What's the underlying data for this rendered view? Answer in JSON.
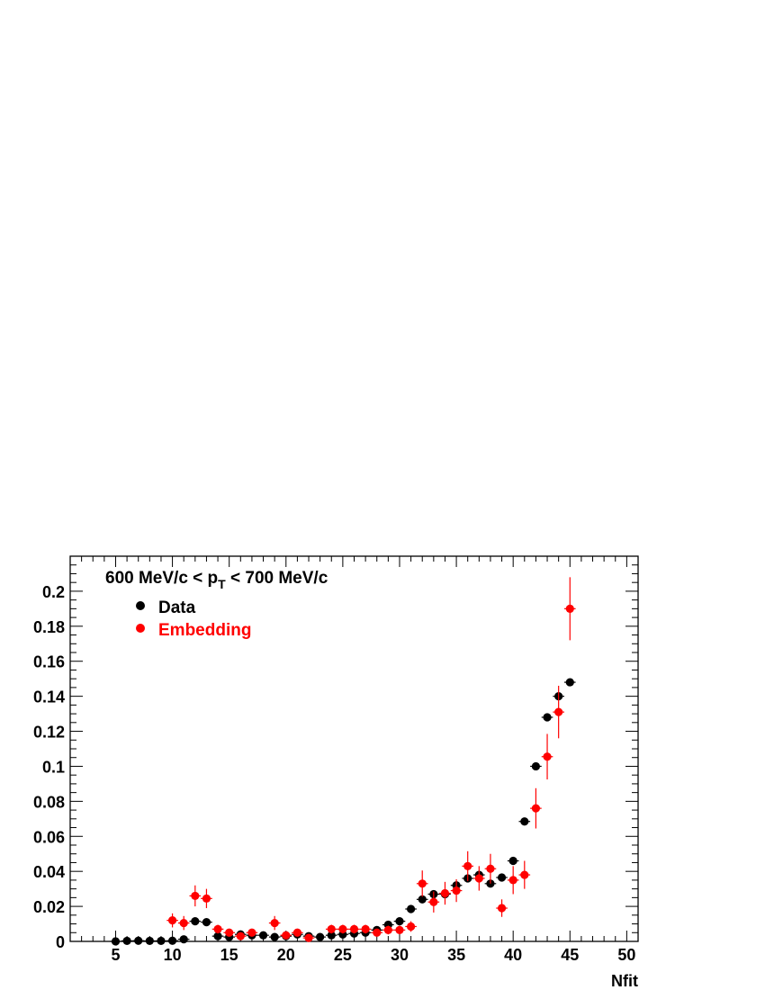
{
  "chart_data": {
    "type": "scatter",
    "title": "600 MeV/c < p",
    "title_subscript": "T",
    "title_suffix": " < 700 MeV/c",
    "xlabel": "Nfit",
    "ylabel": "",
    "xlim": [
      1,
      51
    ],
    "ylim": [
      0,
      0.22
    ],
    "x_ticks": [
      5,
      10,
      15,
      20,
      25,
      30,
      35,
      40,
      45,
      50
    ],
    "y_ticks": [
      0,
      0.02,
      0.04,
      0.06,
      0.08,
      0.1,
      0.12,
      0.14,
      0.16,
      0.18,
      0.2
    ],
    "x_tick_labels": [
      "5",
      "10",
      "15",
      "20",
      "25",
      "30",
      "35",
      "40",
      "45",
      "50"
    ],
    "y_tick_labels": [
      "0",
      "0.02",
      "0.04",
      "0.06",
      "0.08",
      "0.1",
      "0.12",
      "0.14",
      "0.16",
      "0.18",
      "0.2"
    ],
    "grid": false,
    "legend_position": "top-left",
    "series": [
      {
        "name": "Data",
        "color": "#000000",
        "x": [
          5,
          6,
          7,
          8,
          9,
          10,
          11,
          12,
          13,
          14,
          15,
          16,
          17,
          18,
          19,
          20,
          21,
          22,
          23,
          24,
          25,
          26,
          27,
          28,
          29,
          30,
          31,
          32,
          33,
          34,
          35,
          36,
          37,
          38,
          39,
          40,
          41,
          42,
          43,
          44,
          45
        ],
        "y": [
          0.0,
          0.0003,
          0.0004,
          0.0003,
          0.0003,
          0.0004,
          0.0012,
          0.0115,
          0.011,
          0.003,
          0.0025,
          0.004,
          0.0035,
          0.0035,
          0.0025,
          0.003,
          0.004,
          0.003,
          0.0025,
          0.0035,
          0.004,
          0.0045,
          0.005,
          0.0065,
          0.0095,
          0.0115,
          0.0185,
          0.024,
          0.027,
          0.027,
          0.032,
          0.036,
          0.038,
          0.033,
          0.0365,
          0.046,
          0.0685,
          0.1,
          0.128,
          0.14,
          0.148
        ],
        "yerr": [
          0.0002,
          0.0002,
          0.0002,
          0.0002,
          0.0002,
          0.0002,
          0.0004,
          0.0008,
          0.0008,
          0.0004,
          0.0004,
          0.0004,
          0.0004,
          0.0004,
          0.0004,
          0.0004,
          0.0004,
          0.0004,
          0.0004,
          0.0004,
          0.0004,
          0.0004,
          0.0004,
          0.0005,
          0.0006,
          0.0007,
          0.0008,
          0.0009,
          0.001,
          0.001,
          0.001,
          0.001,
          0.0012,
          0.0012,
          0.0012,
          0.0013,
          0.0015,
          0.0016,
          0.0018,
          0.002,
          0.0015
        ]
      },
      {
        "name": "Embedding",
        "color": "#ff0000",
        "x": [
          10,
          11,
          12,
          13,
          14,
          15,
          16,
          17,
          19,
          20,
          21,
          22,
          24,
          25,
          26,
          27,
          28,
          29,
          30,
          31,
          32,
          33,
          34,
          35,
          36,
          37,
          38,
          39,
          40,
          41,
          42,
          43,
          44,
          45
        ],
        "y": [
          0.012,
          0.0105,
          0.026,
          0.0245,
          0.007,
          0.005,
          0.003,
          0.005,
          0.0105,
          0.0035,
          0.005,
          0.002,
          0.007,
          0.007,
          0.007,
          0.007,
          0.005,
          0.0065,
          0.0065,
          0.0085,
          0.033,
          0.0225,
          0.0275,
          0.029,
          0.043,
          0.036,
          0.0415,
          0.019,
          0.035,
          0.038,
          0.076,
          0.1055,
          0.131,
          0.19
        ],
        "yerr": [
          0.004,
          0.004,
          0.006,
          0.0055,
          0.0025,
          0.002,
          0.0015,
          0.002,
          0.004,
          0.0015,
          0.002,
          0.001,
          0.0025,
          0.0025,
          0.0025,
          0.0025,
          0.002,
          0.0025,
          0.0025,
          0.003,
          0.0075,
          0.006,
          0.0065,
          0.0065,
          0.0085,
          0.007,
          0.0085,
          0.005,
          0.008,
          0.008,
          0.0115,
          0.013,
          0.015,
          0.018
        ]
      }
    ]
  }
}
